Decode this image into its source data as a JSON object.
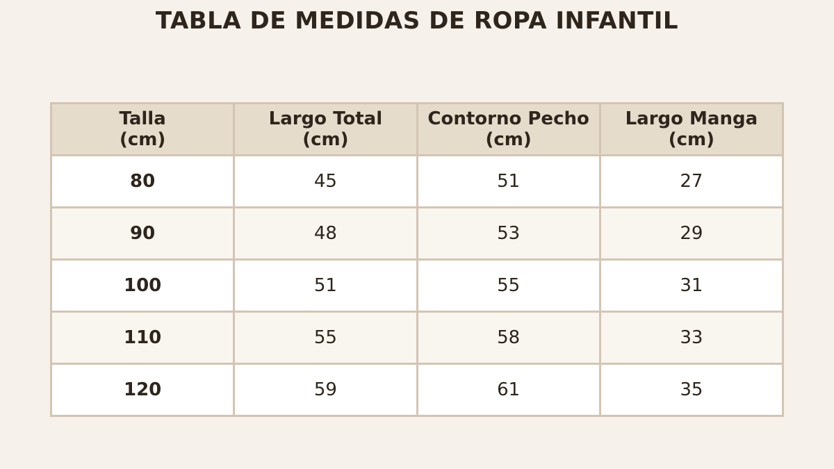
{
  "title": "TABLA DE MEDIDAS DE ROPA INFANTIL",
  "colors": {
    "background": "#f6f1eb",
    "header_fill": "#e6dccb",
    "border": "#d3c5b3",
    "row_odd": "#ffffff",
    "row_even": "#f9f5ef",
    "text": "#2e251c"
  },
  "chart_data": {
    "type": "table",
    "title": "TABLA DE MEDIDAS DE ROPA INFANTIL",
    "columns": [
      {
        "line1": "Talla",
        "line2": "(cm)"
      },
      {
        "line1": "Largo Total",
        "line2": "(cm)"
      },
      {
        "line1": "Contorno Pecho",
        "line2": "(cm)"
      },
      {
        "line1": "Largo Manga",
        "line2": "(cm)"
      }
    ],
    "rows": [
      [
        "80",
        "45",
        "51",
        "27"
      ],
      [
        "90",
        "48",
        "53",
        "29"
      ],
      [
        "100",
        "51",
        "55",
        "31"
      ],
      [
        "110",
        "55",
        "58",
        "33"
      ],
      [
        "120",
        "59",
        "61",
        "35"
      ]
    ]
  }
}
